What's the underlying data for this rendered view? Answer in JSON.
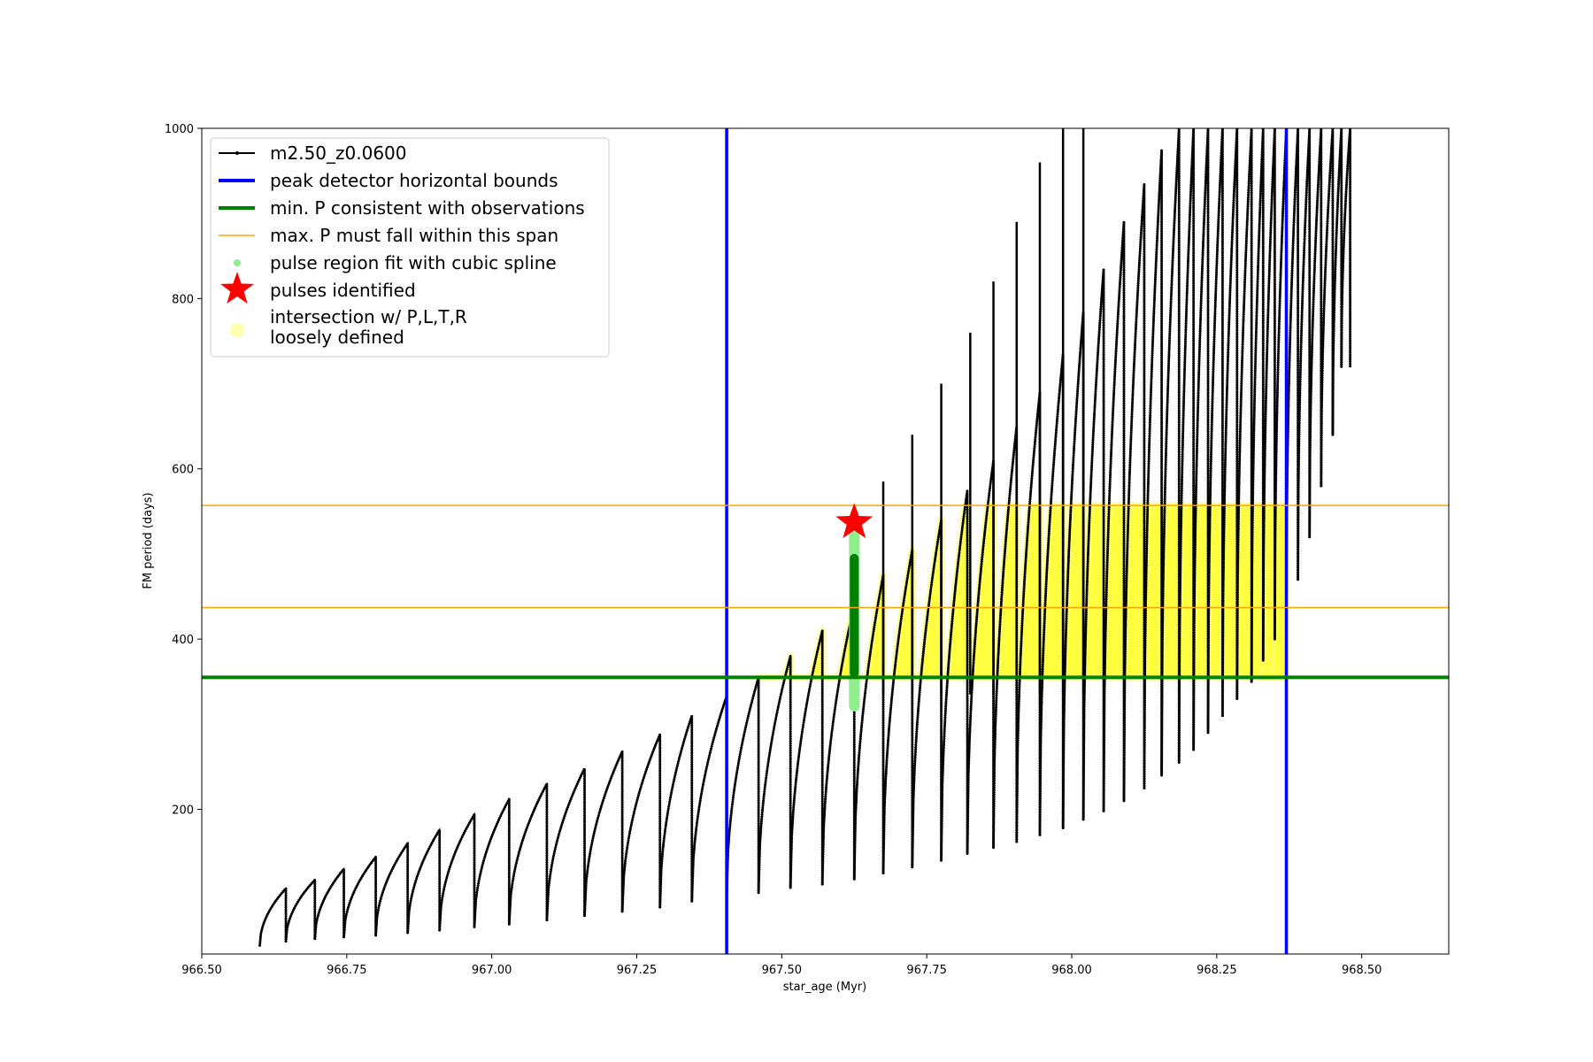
{
  "chart_data": {
    "type": "scatter",
    "title": "",
    "xlabel": "star_age (Myr)",
    "ylabel": "FM period (days)",
    "xlim": [
      966.5,
      968.65
    ],
    "ylim": [
      30,
      1000
    ],
    "xticks": [
      966.5,
      966.75,
      967.0,
      967.25,
      967.5,
      967.75,
      968.0,
      968.25,
      968.5
    ],
    "xtick_labels": [
      "966.50",
      "966.75",
      "967.00",
      "967.25",
      "967.50",
      "967.75",
      "968.00",
      "968.25",
      "968.50"
    ],
    "yticks": [
      200,
      400,
      600,
      800,
      1000
    ],
    "ytick_labels": [
      "200",
      "400",
      "600",
      "800",
      "1000"
    ],
    "grid": false,
    "legend_position": "top-left",
    "colors": {
      "track": "#000000",
      "bounds": "#0000ff",
      "min_period": "#008000",
      "max_period_span": "#ffa500",
      "spline": "#90ee90",
      "pulse": "#ff0000",
      "intersection": "#ffff00"
    },
    "series": [
      {
        "name": "m2.50_z0.0600",
        "style": "black line with point markers",
        "x_range": [
          966.6,
          968.48
        ],
        "cycles_start": [
          966.6,
          966.645,
          966.695,
          966.745,
          966.8,
          966.855,
          966.91,
          966.97,
          967.03,
          967.095,
          967.16,
          967.225,
          967.29,
          967.345,
          967.405,
          967.46,
          967.515,
          967.57,
          967.625,
          967.675,
          967.725,
          967.775,
          967.82,
          967.865,
          967.905,
          967.945,
          967.985,
          968.02,
          968.055,
          968.09,
          968.125,
          968.155,
          968.185,
          968.21,
          968.235,
          968.26,
          968.285,
          968.31,
          968.33,
          968.35,
          968.37,
          968.39,
          968.41,
          968.43,
          968.45,
          968.465
        ],
        "cycles_peak": [
          107,
          117,
          130,
          144,
          160,
          176,
          194,
          212,
          230,
          248,
          268,
          288,
          310,
          333,
          355,
          380,
          410,
          440,
          475,
          505,
          540,
          575,
          610,
          650,
          690,
          735,
          785,
          835,
          890,
          935,
          975,
          1000,
          1000,
          1000,
          1000,
          1000,
          1000,
          1000,
          1000,
          1000,
          1000,
          1000,
          1000,
          1000,
          1000,
          1000
        ],
        "cycles_min": [
          40,
          45,
          48,
          50,
          52,
          55,
          58,
          62,
          65,
          70,
          75,
          80,
          85,
          92,
          98,
          102,
          108,
          112,
          118,
          125,
          132,
          140,
          148,
          155,
          162,
          170,
          178,
          188,
          198,
          210,
          225,
          240,
          255,
          270,
          290,
          310,
          330,
          350,
          375,
          400,
          430,
          470,
          520,
          580,
          640,
          720
        ],
        "spikes": [
          [
            967.345,
            335
          ],
          [
            967.405,
            0
          ],
          [
            967.46,
            0
          ],
          [
            967.515,
            0
          ],
          [
            967.57,
            0
          ],
          [
            967.625,
            530
          ],
          [
            967.675,
            585
          ],
          [
            967.725,
            640
          ],
          [
            967.775,
            700
          ],
          [
            967.825,
            760
          ],
          [
            967.865,
            820
          ],
          [
            967.905,
            890
          ],
          [
            967.945,
            960
          ],
          [
            967.985,
            1000
          ],
          [
            968.02,
            1000
          ]
        ]
      },
      {
        "name": "peak detector horizontal bounds",
        "type": "vline",
        "x": [
          967.405,
          968.37
        ]
      },
      {
        "name": "min. P consistent with observations",
        "type": "hline",
        "y": 355
      },
      {
        "name": "max. P must fall within this span",
        "type": "hline",
        "y": [
          437,
          557
        ]
      },
      {
        "name": "pulse region fit with cubic spline",
        "type": "scatter",
        "x": [
          967.625
        ],
        "y_range": [
          315,
          535
        ]
      },
      {
        "name": "pulses identified",
        "type": "star",
        "x": [
          967.625
        ],
        "y": [
          537
        ]
      },
      {
        "name": "intersection w/ P,L,T,R\nloosely defined",
        "type": "scatter",
        "x_range": [
          967.405,
          968.37
        ],
        "y_range": [
          355,
          557
        ]
      }
    ],
    "legend": [
      {
        "label": "m2.50_z0.0600",
        "marker": "line-dot",
        "color": "#000000"
      },
      {
        "label": "peak detector horizontal bounds",
        "marker": "thick-line",
        "color": "#0000ff"
      },
      {
        "label": "min. P consistent with observations",
        "marker": "thick-line",
        "color": "#008000"
      },
      {
        "label": "max. P must fall within this span",
        "marker": "thin-line",
        "color": "#ffa500"
      },
      {
        "label": "pulse region fit with cubic spline",
        "marker": "dot",
        "color": "#90ee90"
      },
      {
        "label": "pulses identified",
        "marker": "star",
        "color": "#ff0000"
      },
      {
        "label_line1": "intersection w/ P,L,T,R",
        "label_line2": "loosely defined",
        "marker": "circle",
        "color": "#ffff99"
      }
    ]
  }
}
